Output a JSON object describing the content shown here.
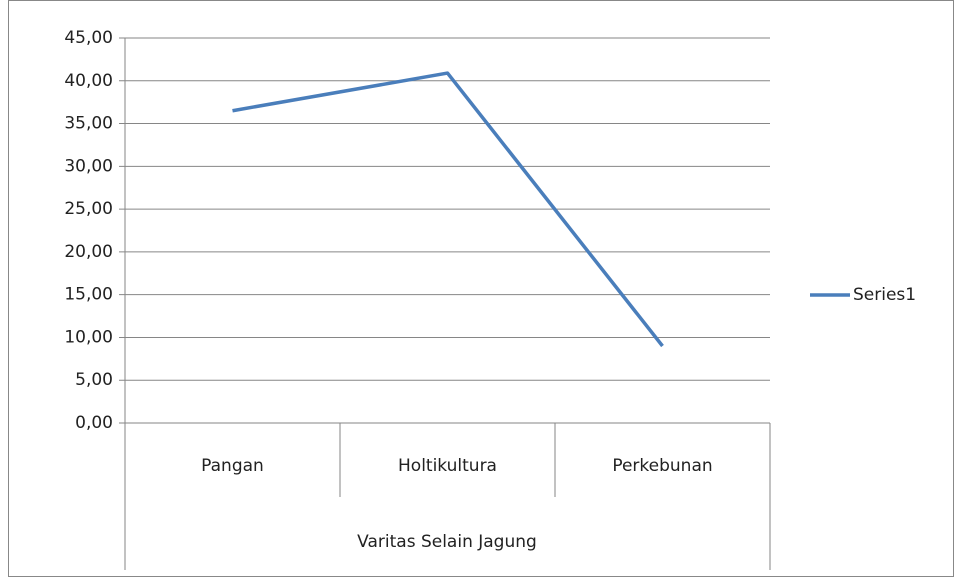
{
  "chart_data": {
    "type": "line",
    "categories": [
      "Pangan",
      "Holtikultura",
      "Perkebunan"
    ],
    "xlabel": "Varitas Selain Jagung",
    "series": [
      {
        "name": "Series1",
        "color": "#4a7ebb",
        "values": [
          36.5,
          40.9,
          9.0
        ]
      }
    ],
    "ylim": [
      0,
      45
    ],
    "yticks": [
      {
        "value": 0,
        "label": "0,00"
      },
      {
        "value": 5,
        "label": "5,00"
      },
      {
        "value": 10,
        "label": "10,00"
      },
      {
        "value": 15,
        "label": "15,00"
      },
      {
        "value": 20,
        "label": "20,00"
      },
      {
        "value": 25,
        "label": "25,00"
      },
      {
        "value": 30,
        "label": "30,00"
      },
      {
        "value": 35,
        "label": "35,00"
      },
      {
        "value": 40,
        "label": "40,00"
      },
      {
        "value": 45,
        "label": "45,00"
      }
    ],
    "grid": true,
    "legend": "right"
  }
}
